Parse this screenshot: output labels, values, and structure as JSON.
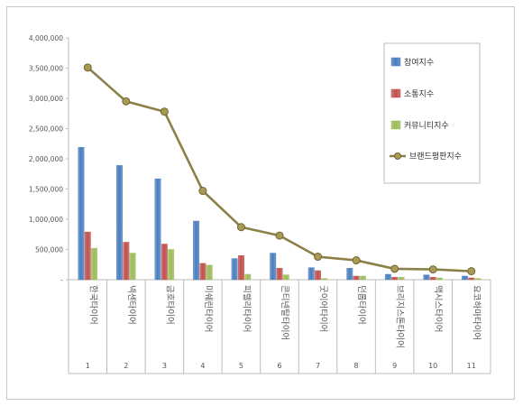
{
  "chart_data": {
    "type": "bar",
    "categories": [
      "한국타이어",
      "넥센타이어",
      "금호타이어",
      "미쉐린타이어",
      "피렐리타이어",
      "콘티넨탈타이어",
      "굿이어타이어",
      "던롭타이어",
      "브리지스톤타이어",
      "맥시스타이어",
      "요코하마타이어"
    ],
    "category_numbers": [
      "1",
      "2",
      "3",
      "4",
      "5",
      "6",
      "7",
      "8",
      "9",
      "10",
      "11"
    ],
    "series": [
      {
        "name": "참여지수",
        "type": "bar",
        "color": "#4a7ebf",
        "values": [
          2190000,
          1890000,
          1670000,
          970000,
          350000,
          440000,
          200000,
          190000,
          90000,
          80000,
          60000
        ]
      },
      {
        "name": "소통지수",
        "type": "bar",
        "color": "#c0504d",
        "values": [
          790000,
          620000,
          590000,
          270000,
          400000,
          190000,
          150000,
          60000,
          40000,
          40000,
          30000
        ]
      },
      {
        "name": "커뮤니티지수",
        "type": "bar",
        "color": "#9bbb59",
        "values": [
          520000,
          440000,
          500000,
          240000,
          90000,
          80000,
          20000,
          60000,
          40000,
          30000,
          20000
        ]
      },
      {
        "name": "브랜드평판지수",
        "type": "line",
        "color": "#8b8048",
        "values": [
          3510000,
          2950000,
          2780000,
          1470000,
          870000,
          730000,
          380000,
          320000,
          180000,
          170000,
          140000
        ]
      }
    ],
    "y_ticks": [
      "-",
      "500,000",
      "1,000,000",
      "1,500,000",
      "2,000,000",
      "2,500,000",
      "3,000,000",
      "3,500,000",
      "4,000,000"
    ],
    "ylim": [
      0,
      4000000
    ],
    "legend_position": "top-right",
    "grid": false
  }
}
